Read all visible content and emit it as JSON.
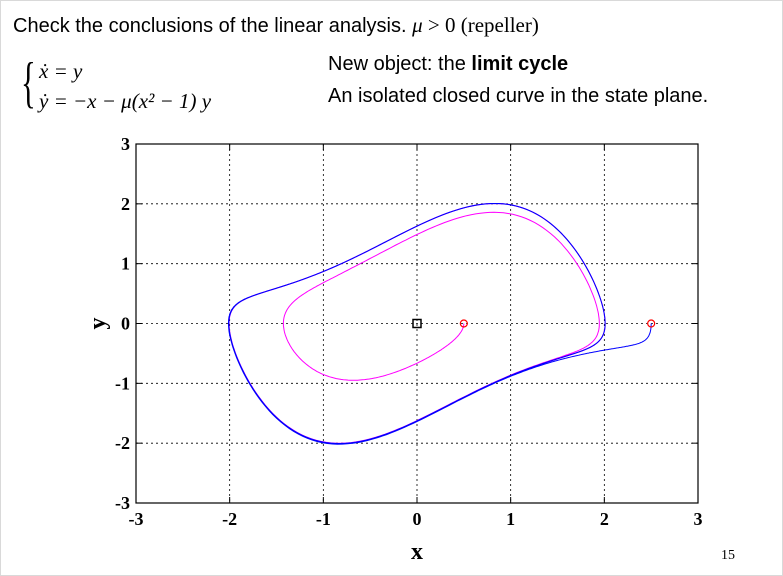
{
  "slide": {
    "title_prefix": "Check the conclusions of the linear analysis.",
    "title_condition": "μ > 0 (repeller)",
    "equation_1": "ẋ = y",
    "equation_2": "ẏ = −x − μ(x² − 1) y",
    "note_prefix": "New object: the ",
    "note_bold": "limit cycle",
    "note_line2": "An isolated closed curve in the state plane.",
    "page_number": "15"
  },
  "chart_data": {
    "type": "scatter",
    "title": "",
    "xlabel": "x",
    "ylabel": "y",
    "xlim": [
      -3,
      3
    ],
    "ylim": [
      -3,
      3
    ],
    "x_ticks": [
      "-3",
      "-2",
      "-1",
      "0",
      "1",
      "2",
      "3"
    ],
    "y_ticks": [
      "-3",
      "-2",
      "-1",
      "0",
      "1",
      "2",
      "3"
    ],
    "grid": true,
    "equilibrium": {
      "x": 0,
      "y": 0,
      "marker": "square",
      "color": "#000000"
    },
    "initial_points": [
      {
        "x": 0.5,
        "y": 0,
        "marker": "circle",
        "color": "#ff0000"
      },
      {
        "x": 2.5,
        "y": 0,
        "marker": "circle",
        "color": "#ff0000"
      }
    ],
    "series": [
      {
        "color": "#ff00ff",
        "start": [
          0.5,
          0
        ],
        "behavior": "spirals outward to limit cycle"
      },
      {
        "color": "#0000ff",
        "start": [
          2.5,
          0
        ],
        "behavior": "spirals inward to limit cycle"
      }
    ],
    "limit_cycle": {
      "x_extent": [
        -2.0,
        2.0
      ],
      "y_extent": [
        -2.0,
        2.0
      ]
    },
    "colors": {
      "inner_trajectory": "#ff00ff",
      "outer_trajectory": "#0000ff",
      "markers": "#ff0000"
    }
  }
}
